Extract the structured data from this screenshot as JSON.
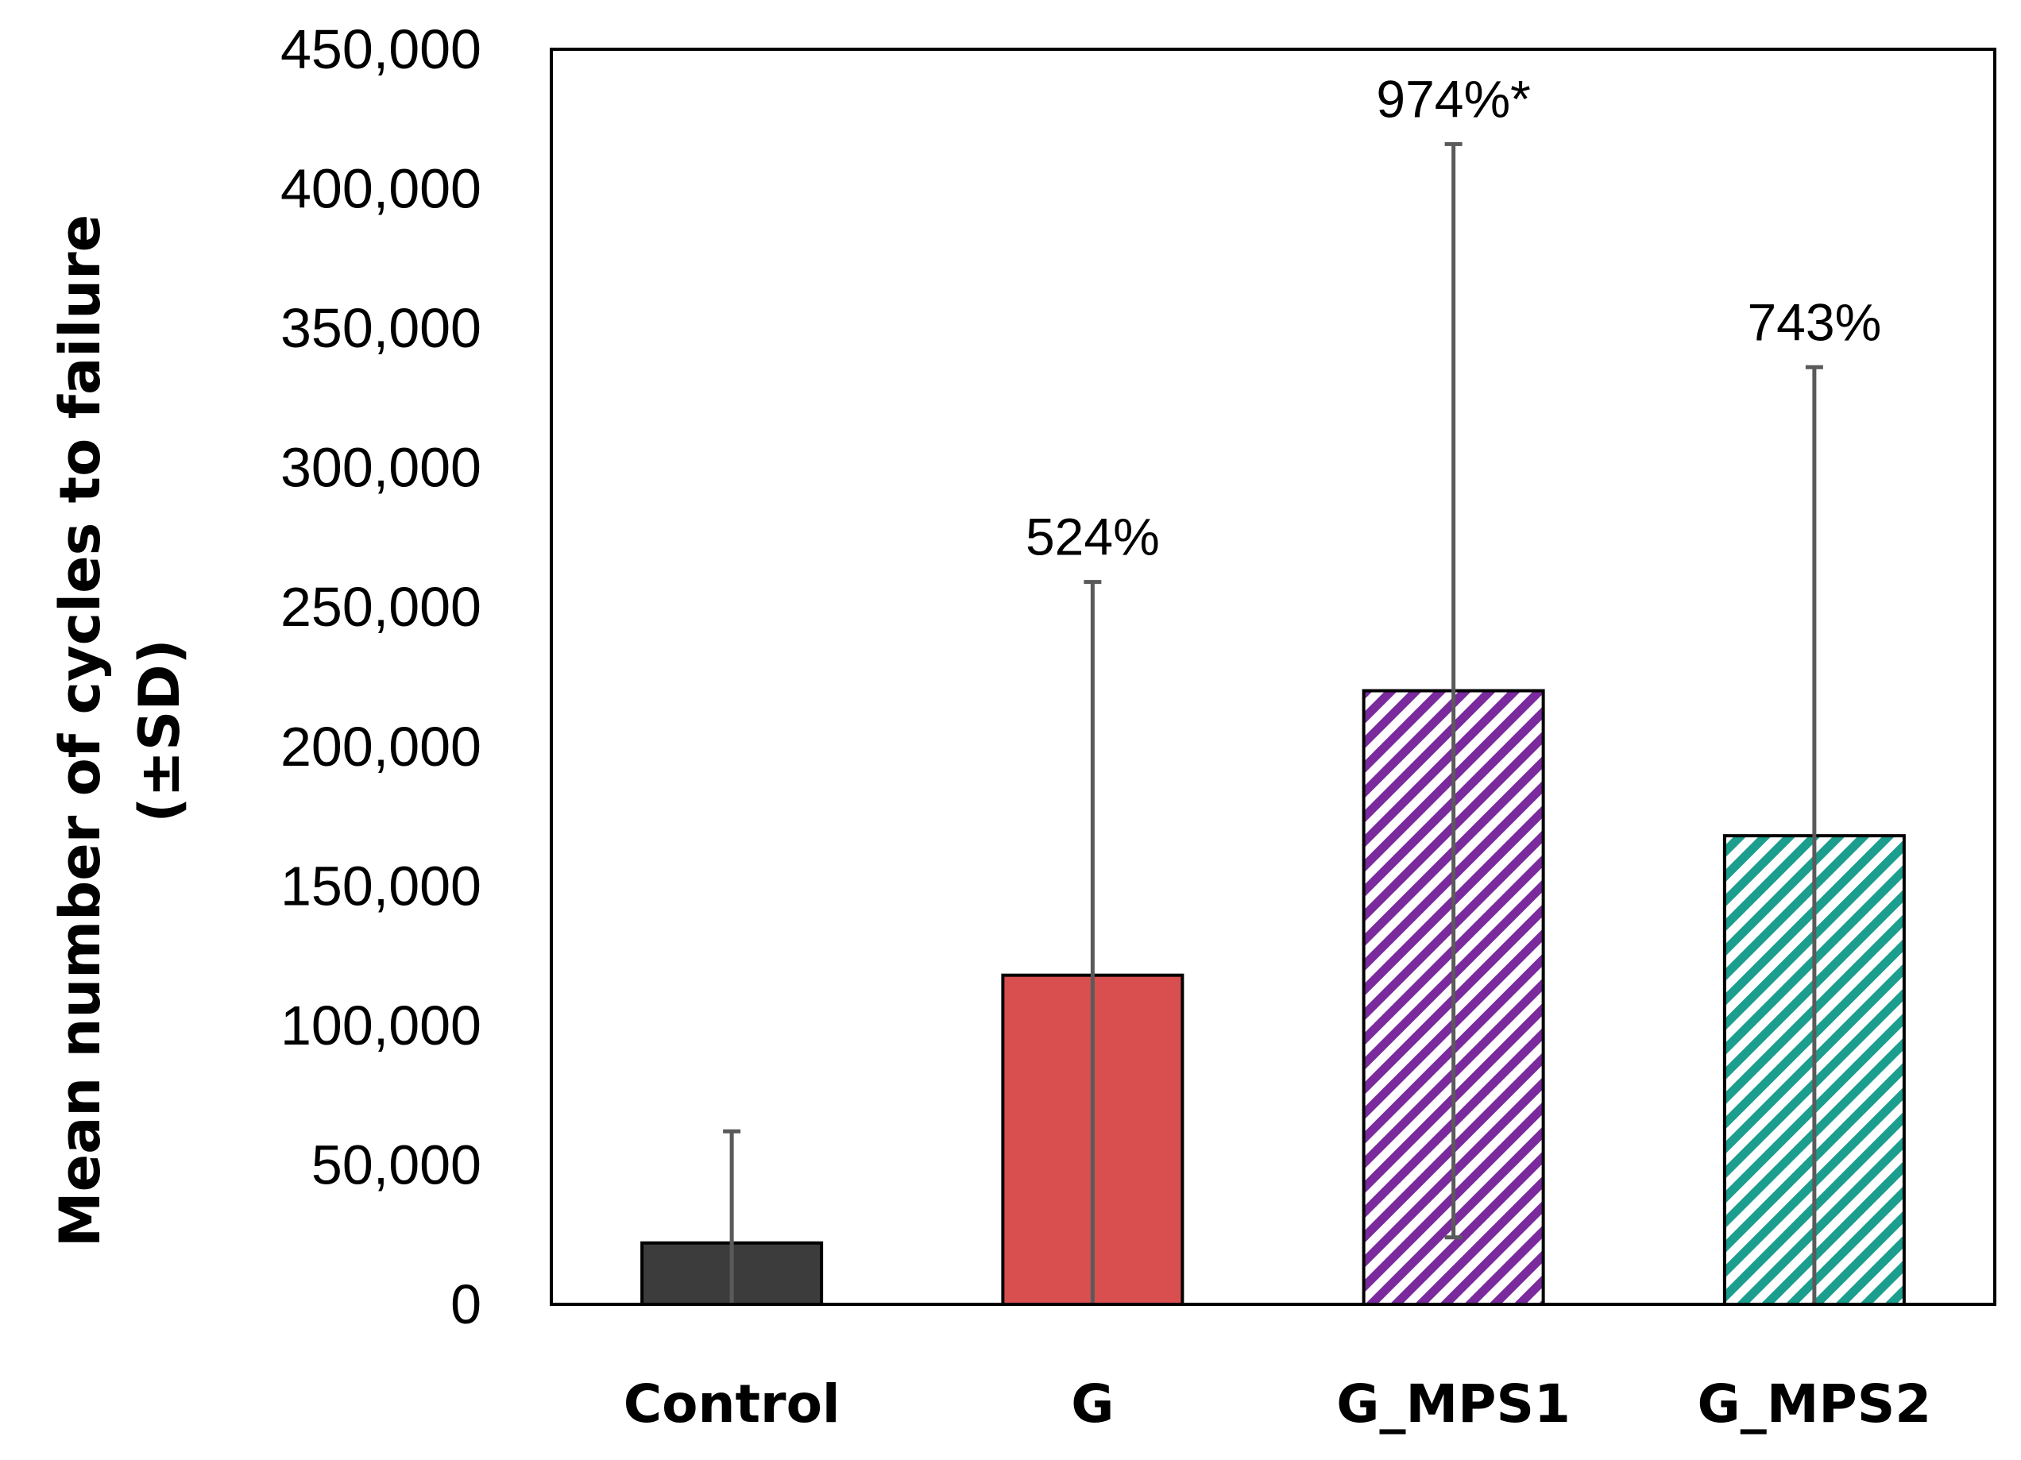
{
  "chart_data": {
    "type": "bar",
    "title": "",
    "xlabel": "",
    "ylabel": "Mean number of cycles to failure (±SD)",
    "ylabel_lines": [
      "Mean number of cycles to failure",
      "(±SD)"
    ],
    "ylim": [
      0,
      450000
    ],
    "yticks": [
      0,
      50000,
      100000,
      150000,
      200000,
      250000,
      300000,
      350000,
      400000,
      450000
    ],
    "ytick_labels": [
      "0",
      "50,000",
      "100,000",
      "150,000",
      "200,000",
      "250,000",
      "300,000",
      "350,000",
      "400,000",
      "450,000"
    ],
    "grid": false,
    "categories": [
      "Control",
      "G",
      "G_MPS1",
      "G_MPS2"
    ],
    "values": [
      22000,
      118000,
      220000,
      168000
    ],
    "error_sd": [
      40000,
      141000,
      196000,
      168000
    ],
    "annotations": [
      "",
      "524%",
      "974%*",
      "743%"
    ],
    "bar_colors": [
      "#3c3c3c",
      "#d94f4f",
      "#7a2a9c",
      "#1c9e8e"
    ],
    "bar_fill_styles": [
      "solid",
      "solid",
      "diagonal-hatch",
      "diagonal-hatch"
    ],
    "error_bar_color": "#5a5a5a"
  }
}
